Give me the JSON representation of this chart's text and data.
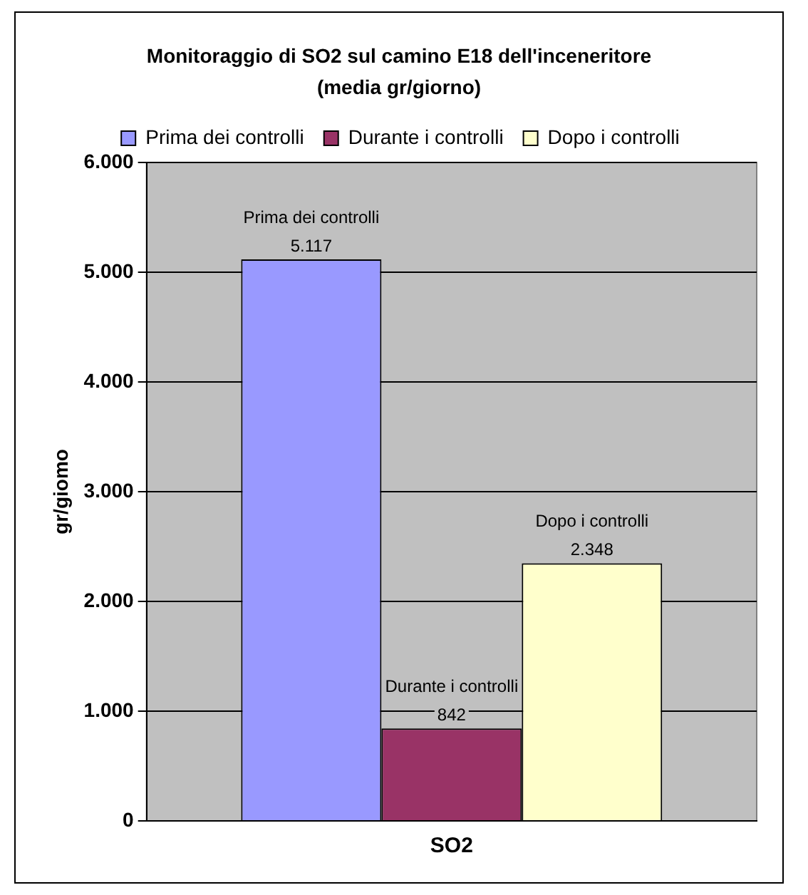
{
  "chart_data": {
    "type": "bar",
    "title": "Monitoraggio di SO2 sul camino E18 dell'inceneritore (media gr/giorno)",
    "ylabel": "gr/giomo",
    "categories": [
      "SO2"
    ],
    "series": [
      {
        "name": "Prima dei controlli",
        "color": "#9999ff",
        "values": [
          5117
        ],
        "value_labels": [
          "5.117"
        ]
      },
      {
        "name": "Durante i controlli",
        "color": "#993366",
        "values": [
          842
        ],
        "value_labels": [
          "842"
        ]
      },
      {
        "name": "Dopo i controlli",
        "color": "#ffffcc",
        "values": [
          2348
        ],
        "value_labels": [
          "2.348"
        ]
      }
    ],
    "ylim": [
      0,
      6000
    ],
    "yticks": [
      {
        "value": 0,
        "label": "0"
      },
      {
        "value": 1000,
        "label": "1.000"
      },
      {
        "value": 2000,
        "label": "2.000"
      },
      {
        "value": 3000,
        "label": "3.000"
      },
      {
        "value": 4000,
        "label": "4.000"
      },
      {
        "value": 5000,
        "label": "5.000"
      },
      {
        "value": 6000,
        "label": "6.000"
      }
    ],
    "grid": "y",
    "legend": "top"
  }
}
